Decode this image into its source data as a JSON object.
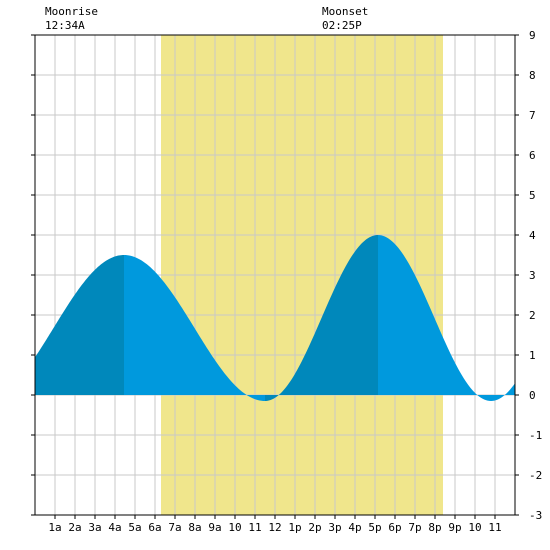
{
  "chart_data": {
    "type": "area",
    "x_categories": [
      "1a",
      "2a",
      "3a",
      "4a",
      "5a",
      "6a",
      "7a",
      "8a",
      "9a",
      "10",
      "11",
      "12",
      "1p",
      "2p",
      "3p",
      "4p",
      "5p",
      "6p",
      "7p",
      "8p",
      "9p",
      "10",
      "11"
    ],
    "y_ticks": [
      -3,
      -2,
      -1,
      0,
      1,
      2,
      3,
      4,
      5,
      6,
      7,
      8,
      9
    ],
    "ylim": [
      -3,
      9
    ],
    "xlim_hours": [
      0,
      24
    ],
    "daylight_hours": [
      6.3,
      20.4
    ],
    "tide_extremes": [
      {
        "hour": 4.45,
        "height": 3.5,
        "kind": "high"
      },
      {
        "hour": 11.5,
        "height": -0.15,
        "kind": "low"
      },
      {
        "hour": 17.15,
        "height": 4.0,
        "kind": "high"
      }
    ],
    "annotations": {
      "moonrise_label": "Moonrise",
      "moonrise_time": "12:34A",
      "moonset_label": "Moonset",
      "moonset_time": "02:25P"
    },
    "colors": {
      "daylight": "#f0e68c",
      "tide_rising": "#0088bb",
      "tide_falling": "#0099dd",
      "grid": "#c8c8c8"
    }
  }
}
